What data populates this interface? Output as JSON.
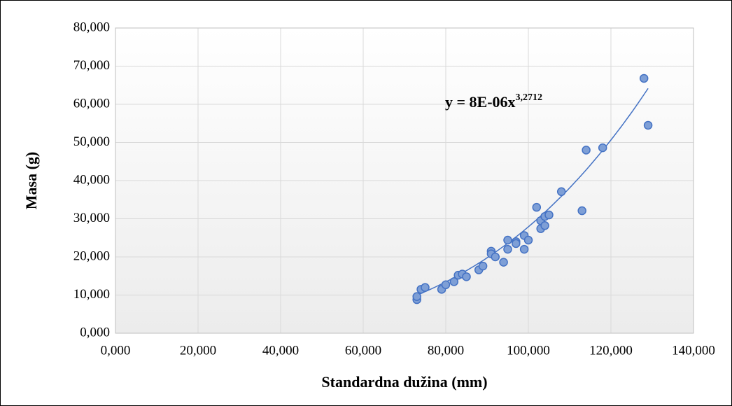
{
  "chart_data": {
    "type": "scatter",
    "x_label": "Standardna dužina (mm)",
    "y_label": "Masa (g)",
    "xlim": [
      0,
      140
    ],
    "ylim": [
      0,
      80
    ],
    "xticks": [
      {
        "value": 0,
        "label": "0,000"
      },
      {
        "value": 20,
        "label": "20,000"
      },
      {
        "value": 40,
        "label": "40,000"
      },
      {
        "value": 60,
        "label": "60,000"
      },
      {
        "value": 80,
        "label": "80,000"
      },
      {
        "value": 100,
        "label": "100,000"
      },
      {
        "value": 120,
        "label": "120,000"
      },
      {
        "value": 140,
        "label": "140,000"
      }
    ],
    "yticks": [
      {
        "value": 0,
        "label": "0,000"
      },
      {
        "value": 10,
        "label": "10,000"
      },
      {
        "value": 20,
        "label": "20,000"
      },
      {
        "value": 30,
        "label": "30,000"
      },
      {
        "value": 40,
        "label": "40,000"
      },
      {
        "value": 50,
        "label": "50,000"
      },
      {
        "value": 60,
        "label": "60,000"
      },
      {
        "value": 70,
        "label": "70,000"
      },
      {
        "value": 80,
        "label": "80,000"
      }
    ],
    "grid": true,
    "series": [
      {
        "color": "#7e9fd6",
        "x": [
          73,
          73,
          74,
          75,
          79,
          80,
          82,
          83,
          84,
          85,
          88,
          89,
          91,
          91,
          92,
          94,
          95,
          95,
          97,
          97,
          99,
          99,
          100,
          102,
          103,
          103,
          104,
          104,
          105,
          108,
          113,
          114,
          118,
          128,
          129
        ],
        "values": [
          8.8,
          9.6,
          11.5,
          12,
          11.5,
          12.7,
          13.5,
          15.2,
          15.5,
          14.8,
          16.6,
          17.6,
          21.5,
          20.8,
          20,
          18.6,
          22,
          24.4,
          24,
          23.5,
          25.6,
          22,
          24.4,
          33,
          29.5,
          27.4,
          30.6,
          28.2,
          31,
          37.1,
          32.1,
          48,
          48.6,
          66.8,
          54.5
        ]
      }
    ],
    "trendline": {
      "type": "power",
      "a": 8e-06,
      "b": 3.2712,
      "color": "#4472c4",
      "equation": "y = 8E-06x",
      "exponent": "3,2712"
    }
  }
}
